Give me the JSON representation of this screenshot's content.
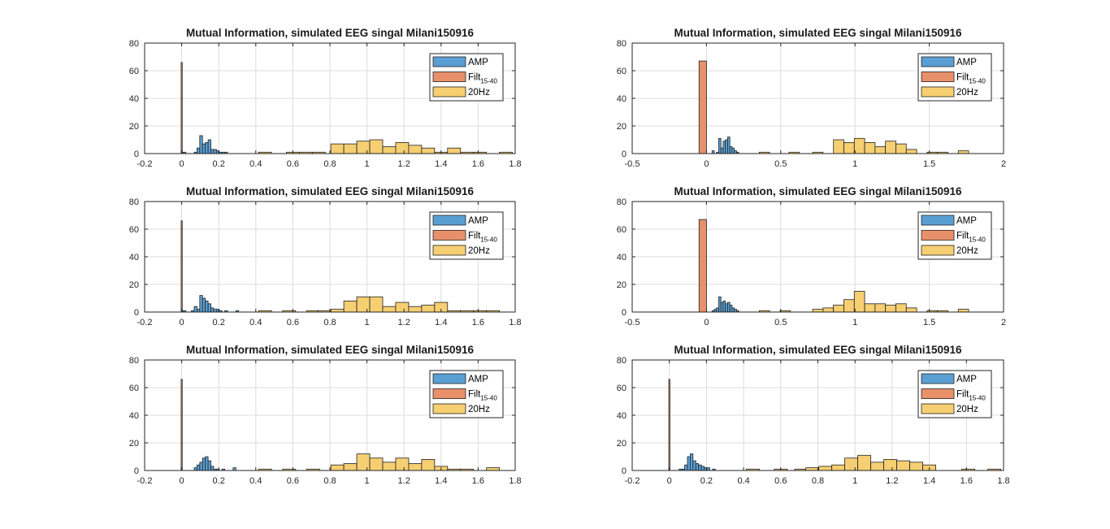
{
  "chart_data": [
    {
      "type": "histogram",
      "title": "Mutual Information, simulated EEG singal Milani150916",
      "xlim": [
        -0.2,
        1.8
      ],
      "ylim": [
        0,
        80
      ],
      "xticks": [
        "-0.2",
        "0",
        "0.2",
        "0.4",
        "0.6",
        "0.8",
        "1",
        "1.2",
        "1.4",
        "1.6",
        "1.8"
      ],
      "yticks": [
        "0",
        "20",
        "40",
        "60",
        "80"
      ],
      "grid": true,
      "legend_position": "top-right",
      "series": [
        {
          "name": "AMP",
          "color": "#5a9fd4",
          "bin_width": 0.015,
          "x": [
            0.015,
            0.03,
            0.045,
            0.06,
            0.075,
            0.09,
            0.105,
            0.12,
            0.135,
            0.15,
            0.165,
            0.18,
            0.195,
            0.21,
            0.225,
            0.24
          ],
          "y": [
            1,
            0,
            0,
            0,
            1,
            4,
            13,
            7,
            8,
            10,
            3,
            3,
            2,
            1,
            1,
            1
          ]
        },
        {
          "name": "Filt",
          "sub": "15-40",
          "color": "#e8906a",
          "bin_width": 0.006,
          "x": [
            0.0
          ],
          "y": [
            66
          ]
        },
        {
          "name": "20Hz",
          "color": "#f5cf72",
          "bin_width": 0.07,
          "x": [
            0.45,
            0.55,
            0.6,
            0.67,
            0.74,
            0.84,
            0.91,
            0.98,
            1.05,
            1.12,
            1.19,
            1.26,
            1.33,
            1.4,
            1.47,
            1.54,
            1.61,
            1.75
          ],
          "y": [
            1,
            0,
            1,
            1,
            1,
            7,
            7,
            9,
            10,
            5,
            8,
            6,
            4,
            1,
            4,
            1,
            1,
            1
          ]
        }
      ]
    },
    {
      "type": "histogram",
      "title": "Mutual Information, simulated EEG singal Milani150916",
      "xlim": [
        -0.5,
        2
      ],
      "ylim": [
        0,
        80
      ],
      "xticks": [
        "-0.5",
        "0",
        "0.5",
        "1",
        "1.5",
        "2"
      ],
      "yticks": [
        "0",
        "20",
        "40",
        "60",
        "80"
      ],
      "grid": true,
      "legend_position": "top-right",
      "series": [
        {
          "name": "AMP",
          "color": "#5a9fd4",
          "bin_width": 0.015,
          "x": [
            0.045,
            0.06,
            0.075,
            0.09,
            0.105,
            0.12,
            0.135,
            0.15,
            0.165,
            0.18,
            0.195,
            0.21
          ],
          "y": [
            2,
            0,
            1,
            11,
            4,
            9,
            10,
            12,
            5,
            4,
            2,
            1
          ]
        },
        {
          "name": "Filt",
          "sub": "15-40",
          "color": "#e8906a",
          "bin_width": 0.05,
          "x": [
            -0.025
          ],
          "y": [
            67
          ]
        },
        {
          "name": "20Hz",
          "color": "#f5cf72",
          "bin_width": 0.07,
          "x": [
            0.39,
            0.59,
            0.75,
            0.89,
            0.96,
            1.03,
            1.1,
            1.17,
            1.24,
            1.31,
            1.38,
            1.52,
            1.59,
            1.73
          ],
          "y": [
            1,
            1,
            1,
            10,
            8,
            11,
            8,
            5,
            9,
            7,
            3,
            1,
            1,
            2
          ]
        }
      ]
    },
    {
      "type": "histogram",
      "title": "Mutual Information, simulated EEG singal Milani150916",
      "xlim": [
        -0.2,
        1.8
      ],
      "ylim": [
        0,
        80
      ],
      "xticks": [
        "-0.2",
        "0",
        "0.2",
        "0.4",
        "0.6",
        "0.8",
        "1",
        "1.2",
        "1.4",
        "1.6",
        "1.8"
      ],
      "yticks": [
        "0",
        "20",
        "40",
        "60",
        "80"
      ],
      "grid": true,
      "legend_position": "top-right",
      "series": [
        {
          "name": "AMP",
          "color": "#5a9fd4",
          "bin_width": 0.015,
          "x": [
            0.015,
            0.06,
            0.075,
            0.09,
            0.105,
            0.12,
            0.135,
            0.15,
            0.165,
            0.18,
            0.195,
            0.21,
            0.24,
            0.3
          ],
          "y": [
            1,
            1,
            4,
            2,
            12,
            10,
            8,
            6,
            3,
            2,
            2,
            1,
            1,
            1
          ]
        },
        {
          "name": "Filt",
          "sub": "15-40",
          "color": "#e8906a",
          "bin_width": 0.006,
          "x": [
            0.0
          ],
          "y": [
            66
          ]
        },
        {
          "name": "20Hz",
          "color": "#f5cf72",
          "bin_width": 0.07,
          "x": [
            0.45,
            0.58,
            0.71,
            0.77,
            0.84,
            0.91,
            0.98,
            1.05,
            1.12,
            1.19,
            1.26,
            1.33,
            1.4,
            1.47,
            1.54,
            1.61,
            1.68
          ],
          "y": [
            1,
            1,
            1,
            1,
            2,
            8,
            11,
            11,
            4,
            7,
            4,
            5,
            7,
            1,
            1,
            1,
            1
          ]
        }
      ]
    },
    {
      "type": "histogram",
      "title": "Mutual Information, simulated EEG singal Milani150916",
      "xlim": [
        -0.5,
        2
      ],
      "ylim": [
        0,
        80
      ],
      "xticks": [
        "-0.5",
        "0",
        "0.5",
        "1",
        "1.5",
        "2"
      ],
      "yticks": [
        "0",
        "20",
        "40",
        "60",
        "80"
      ],
      "grid": true,
      "legend_position": "top-right",
      "series": [
        {
          "name": "AMP",
          "color": "#5a9fd4",
          "bin_width": 0.015,
          "x": [
            0.045,
            0.06,
            0.075,
            0.09,
            0.105,
            0.12,
            0.135,
            0.15,
            0.165,
            0.18,
            0.195,
            0.21
          ],
          "y": [
            1,
            2,
            3,
            11,
            7,
            8,
            6,
            7,
            5,
            3,
            2,
            1
          ]
        },
        {
          "name": "Filt",
          "sub": "15-40",
          "color": "#e8906a",
          "bin_width": 0.05,
          "x": [
            -0.025
          ],
          "y": [
            67
          ]
        },
        {
          "name": "20Hz",
          "color": "#f5cf72",
          "bin_width": 0.07,
          "x": [
            0.39,
            0.53,
            0.75,
            0.82,
            0.89,
            0.96,
            1.03,
            1.1,
            1.17,
            1.24,
            1.31,
            1.38,
            1.52,
            1.59,
            1.73
          ],
          "y": [
            1,
            1,
            2,
            3,
            5,
            9,
            15,
            6,
            6,
            5,
            6,
            3,
            1,
            1,
            2
          ]
        }
      ]
    },
    {
      "type": "histogram",
      "title": "Mutual Information, simulated EEG singal Milani150916",
      "xlim": [
        -0.2,
        1.8
      ],
      "ylim": [
        0,
        80
      ],
      "xticks": [
        "-0.2",
        "0",
        "0.2",
        "0.4",
        "0.6",
        "0.8",
        "1",
        "1.2",
        "1.4",
        "1.6",
        "1.8"
      ],
      "yticks": [
        "0",
        "20",
        "40",
        "60",
        "80"
      ],
      "grid": true,
      "legend_position": "top-right",
      "series": [
        {
          "name": "AMP",
          "color": "#5a9fd4",
          "bin_width": 0.015,
          "x": [
            0.075,
            0.09,
            0.105,
            0.12,
            0.135,
            0.15,
            0.165,
            0.18,
            0.195,
            0.225,
            0.285
          ],
          "y": [
            2,
            4,
            6,
            9,
            10,
            7,
            3,
            1,
            1,
            1,
            2
          ]
        },
        {
          "name": "Filt",
          "sub": "15-40",
          "color": "#e8906a",
          "bin_width": 0.006,
          "x": [
            0.0
          ],
          "y": [
            66
          ]
        },
        {
          "name": "20Hz",
          "color": "#f5cf72",
          "bin_width": 0.07,
          "x": [
            0.45,
            0.58,
            0.71,
            0.84,
            0.91,
            0.98,
            1.05,
            1.12,
            1.19,
            1.26,
            1.33,
            1.4,
            1.47,
            1.54,
            1.68
          ],
          "y": [
            1,
            1,
            1,
            4,
            5,
            12,
            9,
            6,
            9,
            5,
            8,
            3,
            1,
            1,
            2
          ]
        }
      ]
    },
    {
      "type": "histogram",
      "title": "Mutual Information, simulated EEG singal Milani150916",
      "xlim": [
        -0.2,
        1.8
      ],
      "ylim": [
        0,
        80
      ],
      "xticks": [
        "-0.2",
        "0",
        "0.2",
        "0.4",
        "0.6",
        "0.8",
        "1",
        "1.2",
        "1.4",
        "1.6",
        "1.8"
      ],
      "yticks": [
        "0",
        "20",
        "40",
        "60",
        "80"
      ],
      "grid": true,
      "legend_position": "top-right",
      "series": [
        {
          "name": "AMP",
          "color": "#5a9fd4",
          "bin_width": 0.015,
          "x": [
            0.06,
            0.075,
            0.09,
            0.105,
            0.12,
            0.135,
            0.15,
            0.165,
            0.18,
            0.195,
            0.21,
            0.24
          ],
          "y": [
            1,
            1,
            4,
            10,
            12,
            7,
            5,
            4,
            3,
            2,
            2,
            1
          ]
        },
        {
          "name": "Filt",
          "sub": "15-40",
          "color": "#e8906a",
          "bin_width": 0.006,
          "x": [
            0.0
          ],
          "y": [
            66
          ]
        },
        {
          "name": "20Hz",
          "color": "#f5cf72",
          "bin_width": 0.07,
          "x": [
            0.45,
            0.6,
            0.71,
            0.77,
            0.84,
            0.91,
            0.98,
            1.05,
            1.12,
            1.19,
            1.26,
            1.33,
            1.4,
            1.61,
            1.75
          ],
          "y": [
            1,
            1,
            1,
            2,
            3,
            4,
            9,
            11,
            6,
            8,
            7,
            6,
            4,
            1,
            1
          ]
        }
      ]
    }
  ]
}
